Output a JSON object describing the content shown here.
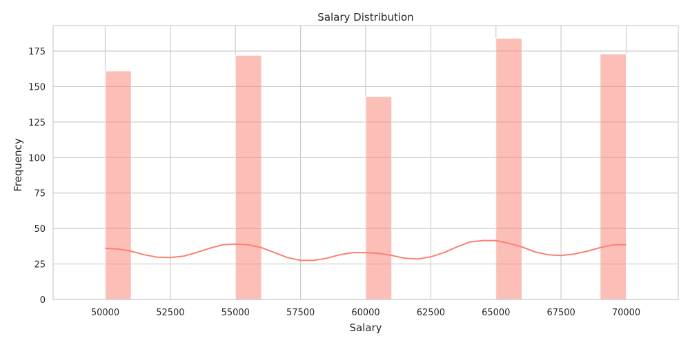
{
  "chart_data": {
    "type": "histogram",
    "title": "Salary Distribution",
    "xlabel": "Salary",
    "ylabel": "Frequency",
    "xlim": [
      48000,
      72000
    ],
    "ylim": [
      0,
      193
    ],
    "x_ticks": [
      50000,
      52500,
      55000,
      57500,
      60000,
      62500,
      65000,
      67500,
      70000
    ],
    "y_ticks": [
      0,
      25,
      50,
      75,
      100,
      125,
      150,
      175
    ],
    "grid": true,
    "bar_color": "#fa8072",
    "bar_opacity": 0.5,
    "kde_color": "#fa8072",
    "bins": [
      {
        "x0": 50000,
        "x1": 51000,
        "count": 161
      },
      {
        "x0": 55000,
        "x1": 56000,
        "count": 172
      },
      {
        "x0": 60000,
        "x1": 61000,
        "count": 143
      },
      {
        "x0": 65000,
        "x1": 66000,
        "count": 184
      },
      {
        "x0": 69000,
        "x1": 70000,
        "count": 173
      }
    ],
    "kde": {
      "x": [
        50000,
        50500,
        51000,
        51500,
        52000,
        52500,
        53000,
        53500,
        54000,
        54500,
        55000,
        55500,
        56000,
        56500,
        57000,
        57500,
        58000,
        58500,
        59000,
        59500,
        60000,
        60500,
        61000,
        61500,
        62000,
        62500,
        63000,
        63500,
        64000,
        64500,
        65000,
        65500,
        66000,
        66500,
        67000,
        67500,
        68000,
        68500,
        69000,
        69500,
        70000
      ],
      "y": [
        36,
        35.5,
        34,
        31.5,
        29.8,
        29.5,
        30.5,
        33,
        36,
        38.5,
        39,
        38.5,
        36.5,
        33,
        29.5,
        27.5,
        27.5,
        29,
        31.5,
        33,
        33,
        32.5,
        31,
        29,
        28.5,
        30,
        33,
        37,
        40.5,
        41.5,
        41.5,
        39.5,
        37,
        33.5,
        31.5,
        31,
        32,
        34,
        36.5,
        38.5,
        38.5
      ]
    }
  }
}
